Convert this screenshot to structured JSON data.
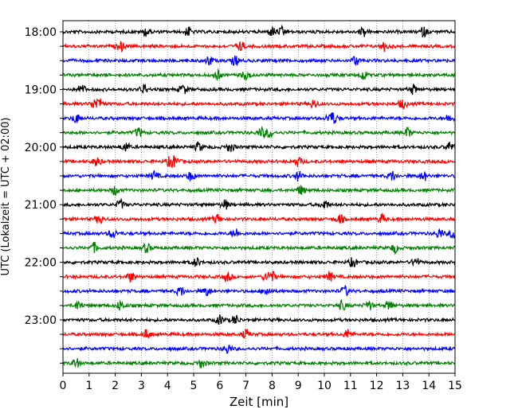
{
  "chart_data": {
    "type": "line",
    "title": "",
    "xlabel": "Zeit  [min]",
    "ylabel": "UTC (Lokalzeit = UTC + 02:00)",
    "xlim": [
      0,
      15
    ],
    "x_ticks": [
      "0",
      "1",
      "2",
      "3",
      "4",
      "5",
      "6",
      "7",
      "8",
      "9",
      "10",
      "11",
      "12",
      "13",
      "14",
      "15"
    ],
    "y_tick_labels": [
      "18:00",
      "19:00",
      "20:00",
      "21:00",
      "22:00",
      "23:00"
    ],
    "row_colors": [
      "#000000",
      "#ff0000",
      "#0000ff",
      "#008000"
    ],
    "grid": "vertical dotted at each minute",
    "legend": "none",
    "rows": [
      {
        "start": "18:00",
        "color": "#000000",
        "events": [
          3.2,
          4.8,
          8.0,
          8.4,
          11.5,
          13.8
        ]
      },
      {
        "start": "18:15",
        "color": "#ff0000",
        "events": [
          2.2,
          6.8,
          12.3
        ]
      },
      {
        "start": "18:30",
        "color": "#0000ff",
        "events": [
          5.6,
          6.6,
          11.2
        ]
      },
      {
        "start": "18:45",
        "color": "#008000",
        "events": [
          5.9,
          7.0,
          11.5
        ]
      },
      {
        "start": "19:00",
        "color": "#000000",
        "events": [
          0.7,
          3.1,
          4.6,
          13.4
        ]
      },
      {
        "start": "19:15",
        "color": "#ff0000",
        "events": [
          1.2,
          1.4,
          9.6,
          13.0
        ]
      },
      {
        "start": "19:30",
        "color": "#0000ff",
        "events": [
          0.5,
          10.2,
          10.4,
          14.8
        ]
      },
      {
        "start": "19:45",
        "color": "#008000",
        "events": [
          2.9,
          7.6,
          7.9,
          13.2
        ]
      },
      {
        "start": "20:00",
        "color": "#000000",
        "events": [
          2.4,
          5.2,
          6.4,
          14.8
        ]
      },
      {
        "start": "20:15",
        "color": "#ff0000",
        "events": [
          1.3,
          4.1,
          4.3,
          9.0
        ]
      },
      {
        "start": "20:30",
        "color": "#0000ff",
        "events": [
          3.5,
          4.9,
          9.0,
          12.6,
          13.8
        ]
      },
      {
        "start": "20:45",
        "color": "#008000",
        "events": [
          2.0,
          9.1
        ]
      },
      {
        "start": "21:00",
        "color": "#000000",
        "events": [
          2.2,
          6.2,
          10.0
        ]
      },
      {
        "start": "21:15",
        "color": "#ff0000",
        "events": [
          1.4,
          5.9,
          10.6,
          12.2
        ]
      },
      {
        "start": "21:30",
        "color": "#0000ff",
        "events": [
          1.9,
          6.6,
          14.4,
          14.9
        ]
      },
      {
        "start": "21:45",
        "color": "#008000",
        "events": [
          1.2,
          3.2,
          12.7
        ]
      },
      {
        "start": "22:00",
        "color": "#000000",
        "events": [
          5.1,
          11.1,
          13.5
        ]
      },
      {
        "start": "22:15",
        "color": "#ff0000",
        "events": [
          2.6,
          6.3,
          7.8,
          8.0,
          10.2
        ]
      },
      {
        "start": "22:30",
        "color": "#0000ff",
        "events": [
          4.5,
          5.5,
          7.8,
          10.8
        ]
      },
      {
        "start": "22:45",
        "color": "#008000",
        "events": [
          0.6,
          2.2,
          10.7,
          11.7,
          12.5
        ]
      },
      {
        "start": "23:00",
        "color": "#000000",
        "events": [
          6.0,
          6.6
        ]
      },
      {
        "start": "23:15",
        "color": "#ff0000",
        "events": [
          3.2,
          7.0,
          10.9
        ]
      },
      {
        "start": "23:30",
        "color": "#0000ff",
        "events": [
          6.3
        ]
      },
      {
        "start": "23:45",
        "color": "#008000",
        "events": [
          0.5,
          5.3
        ]
      }
    ]
  }
}
